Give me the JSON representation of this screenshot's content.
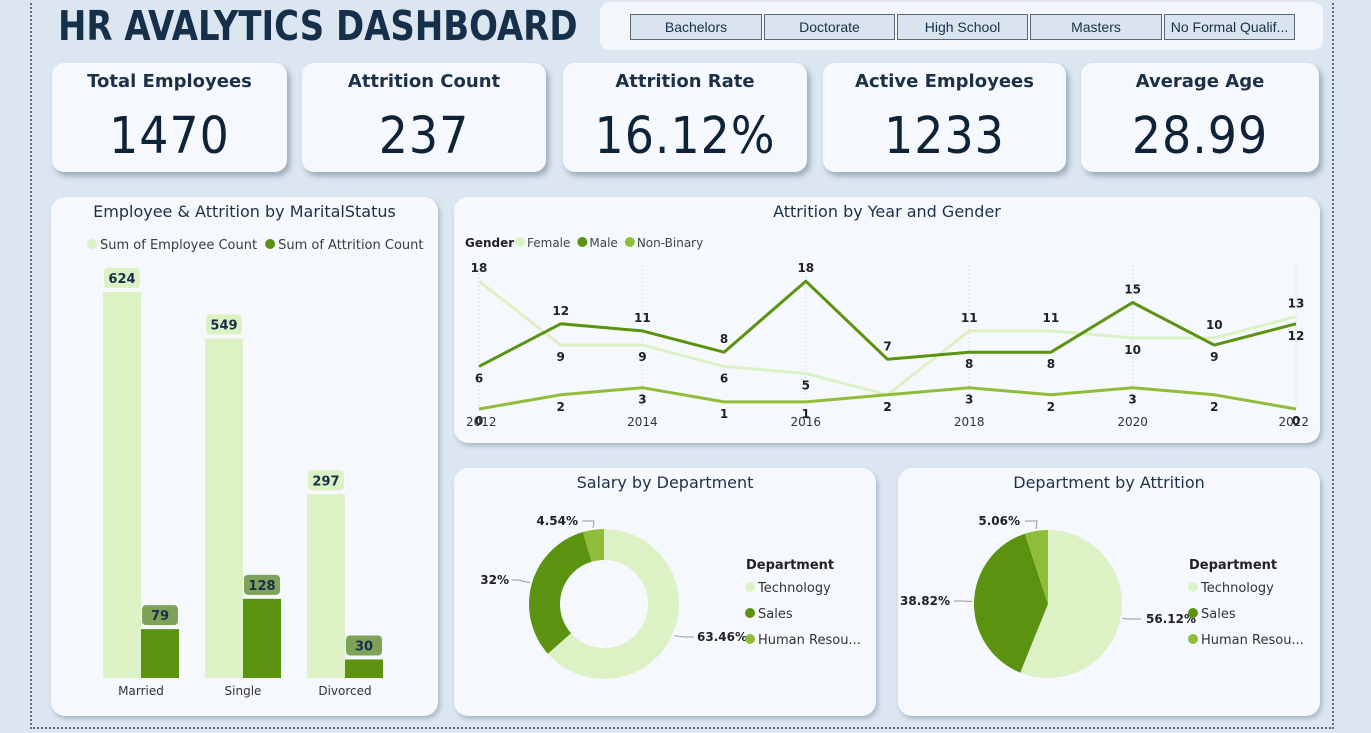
{
  "dashboard": {
    "title": "HR AVALYTICS DASHBOARD"
  },
  "education_slicer": {
    "options": [
      "Bachelors",
      "Doctorate",
      "High School",
      "Masters",
      "No Formal Qualif..."
    ]
  },
  "kpis": [
    {
      "label": "Total Employees",
      "value": "1470"
    },
    {
      "label": "Attrition Count",
      "value": "237"
    },
    {
      "label": "Attrition Rate",
      "value": "16.12%"
    },
    {
      "label": "Active Employees",
      "value": "1233"
    },
    {
      "label": "Average Age",
      "value": "28.99"
    }
  ],
  "colors": {
    "light_green": "#dcf2c4",
    "dark_green": "#5b9210",
    "mid_green": "#8fbd3a",
    "label_bg_light": "#dcf2c4",
    "label_bg_dark": "#7ea257"
  },
  "chart_data": [
    {
      "type": "bar",
      "title": "Employee & Attrition by MaritalStatus",
      "categories": [
        "Married",
        "Single",
        "Divorced"
      ],
      "series": [
        {
          "name": "Sum of Employee Count",
          "values": [
            624,
            549,
            297
          ],
          "color": "#dcf2c4"
        },
        {
          "name": "Sum of Attrition Count",
          "values": [
            79,
            128,
            30
          ],
          "color": "#5b9210"
        }
      ],
      "ylim": [
        0,
        650
      ],
      "legend": "top"
    },
    {
      "type": "line",
      "title": "Attrition by Year and Gender",
      "legend_title": "Gender",
      "x": [
        2012,
        2013,
        2014,
        2015,
        2016,
        2017,
        2018,
        2019,
        2020,
        2021,
        2022
      ],
      "x_ticks": [
        "2012",
        "2014",
        "2016",
        "2018",
        "2020",
        "2022"
      ],
      "series": [
        {
          "name": "Female",
          "values": [
            18,
            9,
            9,
            6,
            5,
            2,
            11,
            11,
            10,
            10,
            13
          ],
          "color": "#dcf2c4"
        },
        {
          "name": "Male",
          "values": [
            6,
            12,
            11,
            8,
            18,
            7,
            8,
            8,
            15,
            9,
            12
          ],
          "color": "#5b9210"
        },
        {
          "name": "Non-Binary",
          "values": [
            0,
            2,
            3,
            1,
            1,
            2,
            3,
            2,
            3,
            2,
            0
          ],
          "color": "#8fbd3a"
        }
      ],
      "ylim": [
        0,
        20
      ],
      "legend": "top-left"
    },
    {
      "type": "pie",
      "title": "Salary by Department",
      "donut": true,
      "legend_title": "Department",
      "legend_labels": [
        "Technology",
        "Sales",
        "Human Resou..."
      ],
      "slices": [
        {
          "name": "Technology",
          "value": 63.46,
          "label": "63.46%",
          "color": "#dcf2c4"
        },
        {
          "name": "Sales",
          "value": 32,
          "label": "32%",
          "color": "#5b9210"
        },
        {
          "name": "Human Resources",
          "value": 4.54,
          "label": "4.54%",
          "color": "#8fbd3a"
        }
      ],
      "legend": "right"
    },
    {
      "type": "pie",
      "title": "Department by Attrition",
      "donut": false,
      "legend_title": "Department",
      "legend_labels": [
        "Technology",
        "Sales",
        "Human Resou..."
      ],
      "slices": [
        {
          "name": "Technology",
          "value": 56.12,
          "label": "56.12%",
          "color": "#dcf2c4"
        },
        {
          "name": "Sales",
          "value": 38.82,
          "label": "38.82%",
          "color": "#5b9210"
        },
        {
          "name": "Human Resources",
          "value": 5.06,
          "label": "5.06%",
          "color": "#8fbd3a"
        }
      ],
      "legend": "right"
    }
  ]
}
